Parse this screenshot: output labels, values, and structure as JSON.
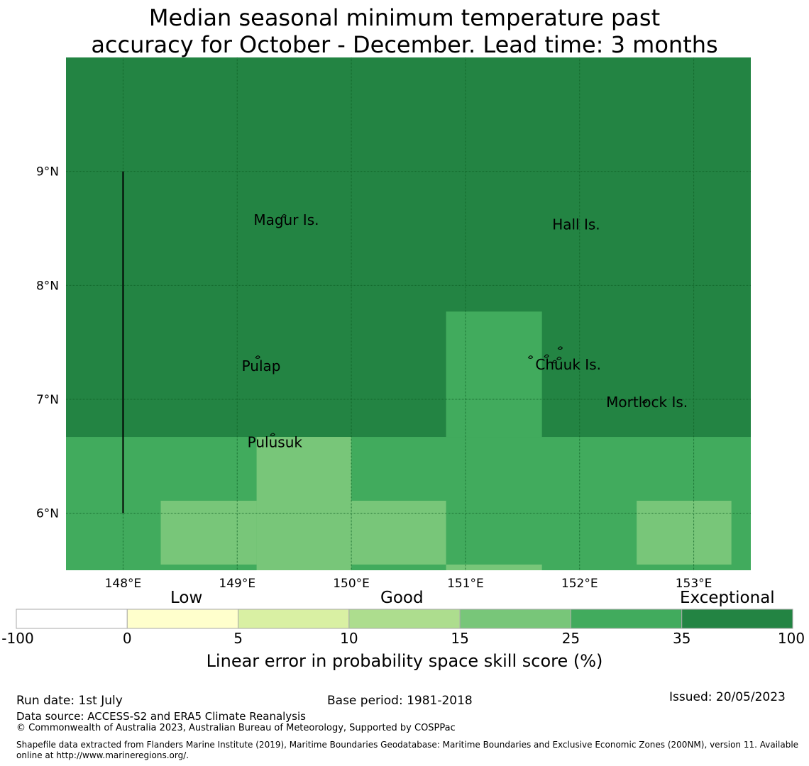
{
  "title": {
    "line1": "Median seasonal minimum temperature past",
    "line2": "accuracy for October - December. Lead time: 3 months"
  },
  "map": {
    "lon_range": [
      147.5,
      153.5
    ],
    "lat_range": [
      5.5,
      10.0
    ],
    "lon_ticks": [
      {
        "value": 148,
        "label": "148°E"
      },
      {
        "value": 149,
        "label": "149°E"
      },
      {
        "value": 150,
        "label": "150°E"
      },
      {
        "value": 151,
        "label": "151°E"
      },
      {
        "value": 152,
        "label": "152°E"
      },
      {
        "value": 153,
        "label": "153°E"
      }
    ],
    "lat_ticks": [
      {
        "value": 9,
        "label": "9°N"
      },
      {
        "value": 8,
        "label": "8°N"
      },
      {
        "value": 7,
        "label": "7°N"
      },
      {
        "value": 6,
        "label": "6°N"
      }
    ],
    "grid": true,
    "background_class": 6,
    "regions": [
      {
        "lon": [
          147.5,
          153.5
        ],
        "lat": [
          5.5,
          6.67
        ],
        "class": 5
      },
      {
        "lon": [
          150.83,
          151.67
        ],
        "lat": [
          6.67,
          7.77
        ],
        "class": 5
      },
      {
        "lon": [
          148.33,
          149.17
        ],
        "lat": [
          5.55,
          6.11
        ],
        "class": 4
      },
      {
        "lon": [
          149.17,
          150.0
        ],
        "lat": [
          5.5,
          6.67
        ],
        "class": 4
      },
      {
        "lon": [
          150.0,
          150.83
        ],
        "lat": [
          5.55,
          6.11
        ],
        "class": 4
      },
      {
        "lon": [
          150.83,
          151.67
        ],
        "lat": [
          5.5,
          5.55
        ],
        "class": 4
      },
      {
        "lon": [
          152.5,
          153.33
        ],
        "lat": [
          5.55,
          6.11
        ],
        "class": 4
      }
    ],
    "boundary_line": {
      "lon": 148.0,
      "lat": [
        6.0,
        9.0
      ]
    },
    "places": [
      {
        "name": "Magur Is.",
        "lon": 149.43,
        "lat": 8.53
      },
      {
        "name": "Hall Is.",
        "lon": 151.97,
        "lat": 8.49
      },
      {
        "name": "Pulap",
        "lon": 149.21,
        "lat": 7.25
      },
      {
        "name": "Chuuk Is.",
        "lon": 151.9,
        "lat": 7.26
      },
      {
        "name": "Mortlock Is.",
        "lon": 152.59,
        "lat": 6.93
      },
      {
        "name": "Pulusuk",
        "lon": 149.33,
        "lat": 6.58
      }
    ],
    "islands": [
      {
        "lon": 149.41,
        "lat": 8.61
      },
      {
        "lon": 149.18,
        "lat": 7.37
      },
      {
        "lon": 149.31,
        "lat": 6.69
      },
      {
        "lon": 151.57,
        "lat": 7.37
      },
      {
        "lon": 151.71,
        "lat": 7.38
      },
      {
        "lon": 151.83,
        "lat": 7.45
      },
      {
        "lon": 151.82,
        "lat": 7.36
      },
      {
        "lon": 151.78,
        "lat": 7.33
      },
      {
        "lon": 152.57,
        "lat": 6.98
      }
    ]
  },
  "colorbar": {
    "boundaries": [
      -100,
      0,
      5,
      10,
      15,
      25,
      35,
      100
    ],
    "tick_labels": [
      "-100",
      "0",
      "5",
      "10",
      "15",
      "25",
      "35",
      "100"
    ],
    "colors": [
      "#ffffff",
      "#ffffcc",
      "#d9f0a3",
      "#addd8e",
      "#78c679",
      "#41ab5d",
      "#238443"
    ],
    "category_labels": {
      "low": "Low",
      "good": "Good",
      "exceptional": "Exceptional"
    },
    "title": "Linear error in probability space skill score (%)"
  },
  "footer": {
    "run_date": "Run date: 1st July",
    "base_period": "Base period: 1981-2018",
    "issued": "Issued: 20/05/2023",
    "data_source": "Data source: ACCESS-S2 and ERA5 Climate Reanalysis",
    "copyright": "© Commonwealth of Australia 2023, Australian Bureau of Meteorology, Supported by COSPPac",
    "shapefile_line1": "Shapefile data extracted from Flanders Marine Institute (2019), Maritime Boundaries Geodatabase: Maritime Boundaries and Exclusive Economic Zones (200NM), version 11. Available",
    "shapefile_line2": "online at http://www.marineregions.org/."
  }
}
